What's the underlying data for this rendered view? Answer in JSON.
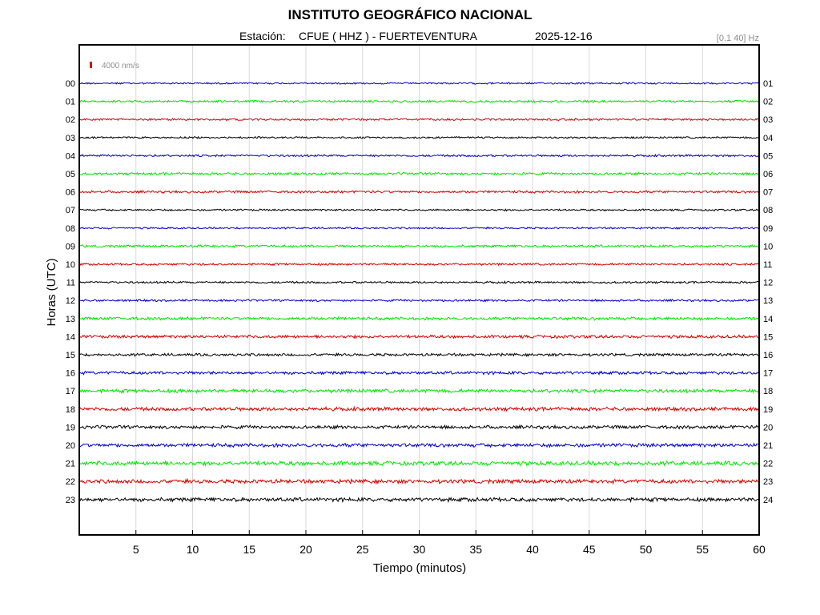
{
  "header": {
    "title": "INSTITUTO GEOGRÁFICO NACIONAL",
    "station_label": "Estación:",
    "station": "CFUE ( HHZ ) - FUERTEVENTURA",
    "date": "2025-12-16",
    "filter": "[0.1 40] Hz"
  },
  "chart_data": {
    "type": "line",
    "title": "INSTITUTO GEOGRÁFICO NACIONAL",
    "xlabel": "Tiempo (minutos)",
    "ylabel": "Horas (UTC)",
    "xlim": [
      0,
      60
    ],
    "x_ticks": [
      "5",
      "10",
      "15",
      "20",
      "25",
      "30",
      "35",
      "40",
      "45",
      "50",
      "55",
      "60"
    ],
    "grid": true,
    "scale_label": "4000 nm/s",
    "scale_color": "#e00000",
    "left_labels": [
      "00",
      "01",
      "02",
      "03",
      "04",
      "05",
      "06",
      "07",
      "08",
      "09",
      "10",
      "11",
      "12",
      "13",
      "14",
      "15",
      "16",
      "17",
      "18",
      "19",
      "20",
      "21",
      "22",
      "23"
    ],
    "right_labels": [
      "01",
      "02",
      "03",
      "04",
      "05",
      "06",
      "07",
      "08",
      "09",
      "10",
      "11",
      "12",
      "13",
      "14",
      "15",
      "16",
      "17",
      "18",
      "19",
      "20",
      "21",
      "22",
      "23",
      "24"
    ],
    "trace_colors": [
      "#0000c8",
      "#00e600",
      "#d20000",
      "#000000"
    ],
    "trace_amplitude": [
      0.6,
      0.7,
      0.7,
      0.6,
      0.7,
      0.8,
      0.8,
      0.6,
      0.6,
      0.8,
      0.7,
      0.7,
      0.7,
      1.0,
      1.0,
      0.9,
      1.0,
      1.2,
      1.2,
      1.1,
      1.2,
      1.4,
      1.3,
      1.3
    ]
  }
}
